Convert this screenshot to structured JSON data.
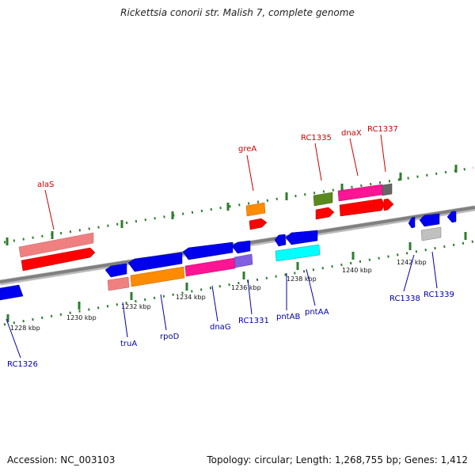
{
  "title": "Rickettsia conorii str. Malish 7, complete genome",
  "footer": {
    "accession": "Accession: NC_003103",
    "stats": "Topology: circular; Length: 1,268,755 bp; Genes: 1,412"
  },
  "colors": {
    "backbone": "#808080",
    "tick": "#2e7d2e",
    "top_label": "#cc0000",
    "bottom_label": "#0000aa"
  },
  "kbp_labels": [
    "1228 kbp",
    "1230 kbp",
    "1232 kbp",
    "1234 kbp",
    "1236 kbp",
    "1238 kbp",
    "1240 kbp",
    "1242 kbp"
  ],
  "top_labels": [
    "alaS",
    "greA",
    "RC1335",
    "dnaX",
    "RC1337"
  ],
  "bottom_labels": [
    "RC1326",
    "truA",
    "rpoD",
    "dnaG",
    "RC1331",
    "pntAB",
    "pntAA",
    "RC1338",
    "RC1339"
  ]
}
